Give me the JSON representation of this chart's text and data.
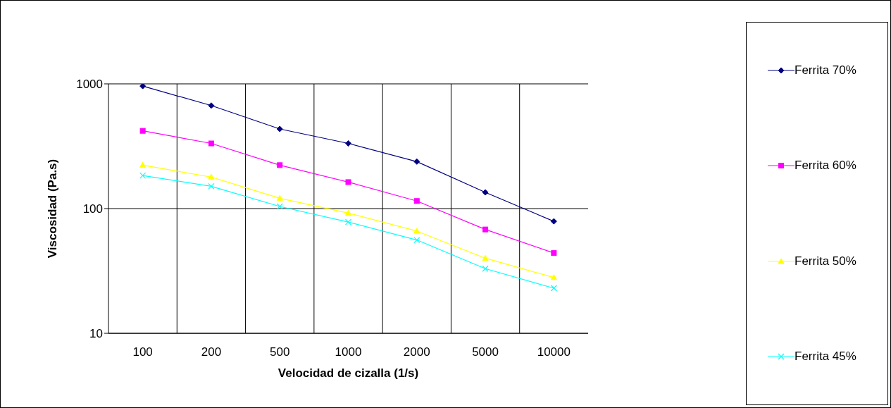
{
  "chart_data": {
    "type": "line",
    "xlabel": "Velocidad de cizalla (1/s)",
    "ylabel": "Viscosidad (Pa.s)",
    "categories": [
      "100",
      "200",
      "500",
      "1000",
      "2000",
      "5000",
      "10000"
    ],
    "log": "y",
    "ylim": [
      10,
      1000
    ],
    "yticks": [
      10,
      100,
      1000
    ],
    "grid": true,
    "legend": "right",
    "series": [
      {
        "name": "Ferrita 70%",
        "color": "#000080",
        "marker": "diamond",
        "values": [
          960,
          670,
          435,
          333,
          238,
          135,
          79
        ]
      },
      {
        "name": "Ferrita 60%",
        "color": "#ff00ff",
        "marker": "square",
        "values": [
          420,
          333,
          223,
          163,
          115,
          68,
          44
        ]
      },
      {
        "name": "Ferrita 50%",
        "color": "#ffff00",
        "marker": "triangle",
        "values": [
          223,
          179,
          121,
          92,
          66,
          40,
          28
        ]
      },
      {
        "name": "Ferrita 45%",
        "color": "#00ffff",
        "marker": "cross",
        "values": [
          184,
          151,
          104,
          78,
          56,
          33,
          23
        ]
      }
    ]
  }
}
